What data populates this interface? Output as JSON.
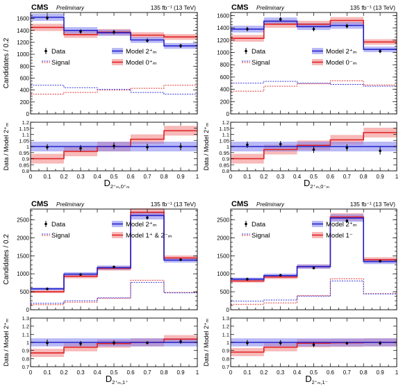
{
  "colors": {
    "data": "#000000",
    "model_zero": "#2222cc",
    "model_alt": "#e02020",
    "signal_zero": "#3333dd",
    "signal_alt": "#e03333",
    "band_zero": "#8080ee",
    "band_alt": "#f08080"
  },
  "chart_data": [
    {
      "type": "bar",
      "id": "top-left",
      "experiment": "CMS",
      "status": "Preliminary",
      "lumi": "135 fb⁻¹ (13 TeV)",
      "xlabel": "D",
      "xlabel_sub": "2⁺ₘ,0⁺ₘ",
      "ylabel": "Candidates / 0.2",
      "ratio_ylabel": "Data / Model 2⁺ₘ",
      "legend": [
        "Data",
        "Model 2⁺ₘ",
        "Signal",
        "Model 0⁺ₘ"
      ],
      "xlim": [
        0,
        1
      ],
      "ylim": [
        0,
        1700
      ],
      "yticks": [
        0,
        200,
        400,
        600,
        800,
        1000,
        1200,
        1400,
        1600
      ],
      "ratio_ylim": [
        0.8,
        1.2
      ],
      "ratio_yticks": [
        0.8,
        0.85,
        0.9,
        0.95,
        1,
        1.05,
        1.1,
        1.15,
        1.2
      ],
      "xticks": [
        0,
        0.1,
        0.2,
        0.3,
        0.4,
        0.5,
        0.6,
        0.7,
        0.8,
        0.9,
        1
      ],
      "bin_edges": [
        0,
        0.2,
        0.4,
        0.6,
        0.8,
        1.0
      ],
      "data": [
        1610,
        1380,
        1370,
        1230,
        1140
      ],
      "data_err": [
        40,
        37,
        37,
        35,
        34
      ],
      "model_zero": [
        1620,
        1400,
        1360,
        1240,
        1140
      ],
      "model_zero_err": [
        60,
        55,
        52,
        50,
        48
      ],
      "model_alt": [
        1450,
        1330,
        1370,
        1320,
        1290
      ],
      "model_alt_err": [
        60,
        55,
        52,
        50,
        48
      ],
      "signal_zero": [
        480,
        440,
        410,
        360,
        330
      ],
      "signal_alt": [
        330,
        360,
        400,
        430,
        480
      ],
      "ratio": [
        0.995,
        0.985,
        1.005,
        0.995,
        1.0
      ],
      "ratio_err": [
        0.025,
        0.027,
        0.027,
        0.028,
        0.03
      ],
      "ratio_alt": [
        0.9,
        0.96,
        1.0,
        1.06,
        1.13
      ],
      "ratio_band": 0.04
    },
    {
      "type": "bar",
      "id": "top-right",
      "experiment": "CMS",
      "status": "Preliminary",
      "lumi": "135 fb⁻¹ (13 TeV)",
      "xlabel": "D",
      "xlabel_sub": "2⁺ₘ,0⁻ₘ",
      "ylabel": "",
      "ratio_ylabel": "Data / Model 2⁺ₘ",
      "legend": [
        "Data",
        "Model 2⁺ₘ",
        "Signal",
        "Model 0⁻ₘ"
      ],
      "xlim": [
        0,
        1
      ],
      "ylim": [
        0,
        1650
      ],
      "yticks": [
        0,
        200,
        400,
        600,
        800,
        1000,
        1200,
        1400,
        1600
      ],
      "ratio_ylim": [
        0.8,
        1.2
      ],
      "ratio_yticks": [
        0.8,
        0.85,
        0.9,
        0.95,
        1,
        1.05,
        1.1,
        1.15,
        1.2
      ],
      "xticks": [
        0,
        0.1,
        0.2,
        0.3,
        0.4,
        0.5,
        0.6,
        0.7,
        0.8,
        0.9,
        1
      ],
      "bin_edges": [
        0,
        0.2,
        0.4,
        0.6,
        0.8,
        1.0
      ],
      "data": [
        1380,
        1540,
        1380,
        1430,
        1020
      ],
      "data_err": [
        37,
        39,
        37,
        38,
        32
      ],
      "model_zero": [
        1380,
        1510,
        1420,
        1440,
        1050
      ],
      "model_zero_err": [
        55,
        58,
        55,
        55,
        45
      ],
      "model_alt": [
        1230,
        1460,
        1460,
        1520,
        1170
      ],
      "model_alt_err": [
        55,
        58,
        55,
        55,
        45
      ],
      "signal_zero": [
        500,
        530,
        500,
        480,
        450
      ],
      "signal_alt": [
        370,
        450,
        490,
        540,
        470
      ],
      "ratio": [
        1.015,
        1.02,
        0.975,
        0.99,
        0.965
      ],
      "ratio_err": [
        0.026,
        0.025,
        0.027,
        0.027,
        0.031
      ],
      "ratio_alt": [
        0.9,
        0.975,
        1.01,
        1.055,
        1.115
      ],
      "ratio_band": 0.04
    },
    {
      "type": "bar",
      "id": "bottom-left",
      "experiment": "CMS",
      "status": "Preliminary",
      "lumi": "135 fb⁻¹ (13 TeV)",
      "xlabel": "D",
      "xlabel_sub": "2⁺ₘ,1⁺",
      "ylabel": "Candidates / 0.2",
      "ratio_ylabel": "Data / Model 2⁺ₘ",
      "legend": [
        "Data",
        "Model 2⁺ₘ",
        "Signal",
        "Model 1⁺ & 2⁻ₘ"
      ],
      "xlim": [
        0,
        1
      ],
      "ylim": [
        0,
        2800
      ],
      "yticks": [
        0,
        500,
        1000,
        1500,
        2000,
        2500
      ],
      "ratio_ylim": [
        0.7,
        1.3
      ],
      "ratio_yticks": [
        0.7,
        0.8,
        0.9,
        1,
        1.1,
        1.2,
        1.3
      ],
      "xticks": [
        0,
        0.1,
        0.2,
        0.3,
        0.4,
        0.5,
        0.6,
        0.7,
        0.8,
        0.9,
        1
      ],
      "bin_edges": [
        0,
        0.2,
        0.4,
        0.6,
        0.8,
        1.0
      ],
      "data": [
        580,
        980,
        1190,
        2560,
        1390
      ],
      "data_err": [
        24,
        31,
        35,
        51,
        37
      ],
      "model_zero": [
        580,
        990,
        1170,
        2620,
        1380
      ],
      "model_zero_err": [
        40,
        55,
        60,
        110,
        70
      ],
      "model_alt": [
        500,
        930,
        1150,
        2710,
        1440
      ],
      "model_alt_err": [
        40,
        55,
        60,
        110,
        70
      ],
      "signal_zero": [
        180,
        250,
        330,
        760,
        470
      ],
      "signal_alt": [
        140,
        210,
        320,
        820,
        480
      ],
      "ratio": [
        0.995,
        0.985,
        0.995,
        0.995,
        1.01
      ],
      "ratio_err": [
        0.04,
        0.032,
        0.03,
        0.02,
        0.028
      ],
      "ratio_alt": [
        0.87,
        0.94,
        0.985,
        1.0,
        1.04
      ],
      "ratio_band": 0.05
    },
    {
      "type": "bar",
      "id": "bottom-right",
      "experiment": "CMS",
      "status": "Preliminary",
      "lumi": "135 fb⁻¹ (13 TeV)",
      "xlabel": "D",
      "xlabel_sub": "2⁺ₘ,1⁻",
      "ylabel": "",
      "ratio_ylabel": "Data / Model 2⁺ₘ",
      "legend": [
        "Data",
        "Model 2⁺ₘ",
        "Signal",
        "Model 1⁻"
      ],
      "xlim": [
        0,
        1
      ],
      "ylim": [
        0,
        2800
      ],
      "yticks": [
        0,
        500,
        1000,
        1500,
        2000,
        2500
      ],
      "ratio_ylim": [
        0.7,
        1.3
      ],
      "ratio_yticks": [
        0.7,
        0.8,
        0.9,
        1,
        1.1,
        1.2,
        1.3
      ],
      "xticks": [
        0,
        0.1,
        0.2,
        0.3,
        0.4,
        0.5,
        0.6,
        0.7,
        0.8,
        0.9,
        1
      ],
      "bin_edges": [
        0,
        0.2,
        0.4,
        0.6,
        0.8,
        1.0
      ],
      "data": [
        850,
        960,
        1160,
        2470,
        1350
      ],
      "data_err": [
        29,
        31,
        34,
        50,
        37
      ],
      "model_zero": [
        850,
        950,
        1200,
        2550,
        1340
      ],
      "model_zero_err": [
        45,
        55,
        60,
        105,
        70
      ],
      "model_alt": [
        800,
        910,
        1200,
        2580,
        1390
      ],
      "model_alt_err": [
        45,
        55,
        60,
        105,
        70
      ],
      "signal_zero": [
        240,
        270,
        380,
        800,
        440
      ],
      "signal_alt": [
        150,
        190,
        390,
        860,
        450
      ],
      "ratio": [
        0.995,
        0.995,
        0.97,
        0.99,
        0.99
      ],
      "ratio_err": [
        0.035,
        0.033,
        0.03,
        0.02,
        0.027
      ],
      "ratio_alt": [
        0.88,
        0.94,
        0.99,
        0.995,
        1.0
      ],
      "ratio_band": 0.05
    }
  ]
}
